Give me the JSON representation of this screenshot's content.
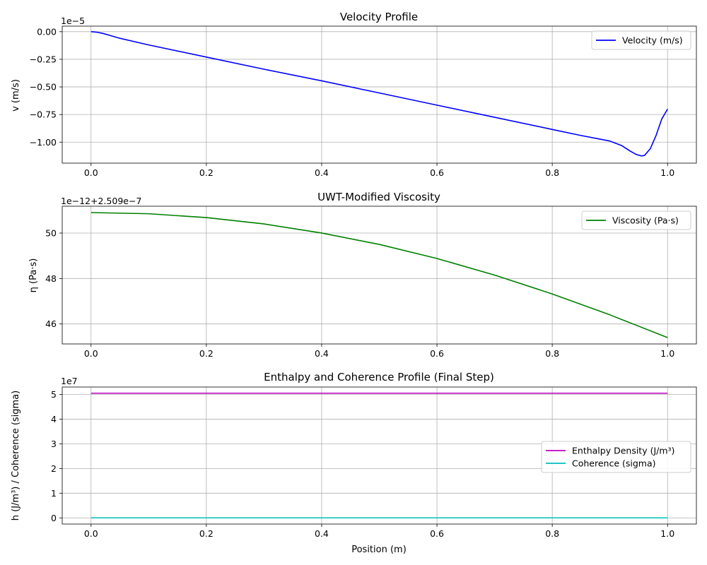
{
  "figure": {
    "xlabel": "Position (m)"
  },
  "chart_data": [
    {
      "type": "line",
      "title": "Velocity Profile",
      "ylabel": "v (m/s)",
      "y_offset_text": "1e−5",
      "x_ticks": [
        "0.0",
        "0.2",
        "0.4",
        "0.6",
        "0.8",
        "1.0"
      ],
      "x_tick_values": [
        0,
        0.2,
        0.4,
        0.6,
        0.8,
        1.0
      ],
      "y_ticks": [
        "0.00",
        "−0.25",
        "−0.50",
        "−0.75",
        "−1.00"
      ],
      "y_tick_values": [
        0,
        -0.25,
        -0.5,
        -0.75,
        -1.0
      ],
      "xlim": [
        -0.05,
        1.05
      ],
      "ylim": [
        -1.19,
        0.05
      ],
      "grid": true,
      "legend_position": "top-right",
      "series": [
        {
          "name": "Velocity (m/s)",
          "color": "#0000ff",
          "x": [
            0,
            0.01,
            0.02,
            0.03,
            0.05,
            0.1,
            0.2,
            0.3,
            0.4,
            0.5,
            0.6,
            0.7,
            0.8,
            0.85,
            0.88,
            0.9,
            0.92,
            0.935,
            0.945,
            0.955,
            0.96,
            0.97,
            0.98,
            0.99,
            1.0
          ],
          "y": [
            0,
            -0.005,
            -0.015,
            -0.03,
            -0.06,
            -0.12,
            -0.23,
            -0.34,
            -0.445,
            -0.555,
            -0.665,
            -0.775,
            -0.885,
            -0.94,
            -0.97,
            -0.99,
            -1.03,
            -1.08,
            -1.11,
            -1.125,
            -1.12,
            -1.06,
            -0.94,
            -0.79,
            -0.7
          ]
        }
      ]
    },
    {
      "type": "line",
      "title": "UWT-Modified Viscosity",
      "ylabel": "η (Pa·s)",
      "y_offset_text": "1e−12+2.509e−7",
      "x_ticks": [
        "0.0",
        "0.2",
        "0.4",
        "0.6",
        "0.8",
        "1.0"
      ],
      "x_tick_values": [
        0,
        0.2,
        0.4,
        0.6,
        0.8,
        1.0
      ],
      "y_ticks": [
        "46",
        "48",
        "50"
      ],
      "y_tick_values": [
        46,
        48,
        50
      ],
      "xlim": [
        -0.05,
        1.05
      ],
      "ylim": [
        45.12,
        51.18
      ],
      "grid": true,
      "legend_position": "top-right",
      "series": [
        {
          "name": "Viscosity (Pa·s)",
          "color": "#008000",
          "x": [
            0,
            0.1,
            0.2,
            0.3,
            0.4,
            0.5,
            0.6,
            0.7,
            0.8,
            0.9,
            1.0
          ],
          "y": [
            50.9,
            50.85,
            50.68,
            50.4,
            50.0,
            49.5,
            48.88,
            48.15,
            47.32,
            46.4,
            45.4
          ]
        }
      ]
    },
    {
      "type": "line",
      "title": "Enthalpy and Coherence Profile (Final Step)",
      "ylabel": "h (J/m³) / Coherence (sigma)",
      "y_offset_text": "1e7",
      "x_ticks": [
        "0.0",
        "0.2",
        "0.4",
        "0.6",
        "0.8",
        "1.0"
      ],
      "x_tick_values": [
        0,
        0.2,
        0.4,
        0.6,
        0.8,
        1.0
      ],
      "y_ticks": [
        "0",
        "1",
        "2",
        "3",
        "4",
        "5"
      ],
      "y_tick_values": [
        0,
        1,
        2,
        3,
        4,
        5
      ],
      "xlim": [
        -0.05,
        1.05
      ],
      "ylim": [
        -0.25,
        5.3
      ],
      "grid": true,
      "legend_position": "center-right",
      "series": [
        {
          "name": "Enthalpy Density (J/m³)",
          "color": "#bf00bf",
          "x": [
            0,
            1.0
          ],
          "y": [
            5.05,
            5.05
          ]
        },
        {
          "name": "Coherence (sigma)",
          "color": "#00bfbf",
          "x": [
            0,
            1.0
          ],
          "y": [
            0,
            0
          ]
        }
      ]
    }
  ]
}
